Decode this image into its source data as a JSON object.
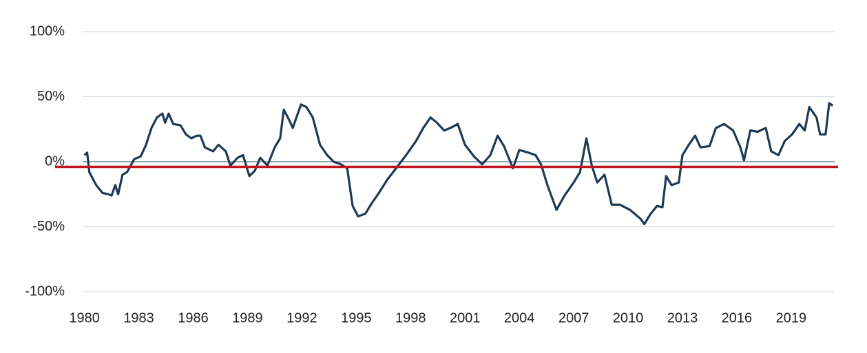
{
  "chart_data": {
    "type": "line",
    "x": [
      1980.0,
      1980.15,
      1980.27,
      1980.65,
      1981.0,
      1981.33,
      1981.5,
      1981.7,
      1981.86,
      1982.1,
      1982.35,
      1982.75,
      1983.1,
      1983.4,
      1983.7,
      1984.0,
      1984.3,
      1984.45,
      1984.65,
      1984.9,
      1985.3,
      1985.6,
      1985.9,
      1986.2,
      1986.4,
      1986.65,
      1987.1,
      1987.4,
      1987.8,
      1988.05,
      1988.45,
      1988.75,
      1989.1,
      1989.4,
      1989.7,
      1990.1,
      1990.5,
      1990.8,
      1991.0,
      1991.3,
      1991.5,
      1991.7,
      1991.95,
      1992.25,
      1992.6,
      1993.0,
      1993.4,
      1993.75,
      1994.15,
      1994.5,
      1994.8,
      1995.1,
      1995.5,
      1995.85,
      1996.25,
      1996.7,
      1997.2,
      1997.75,
      1998.3,
      1998.7,
      1999.1,
      1999.45,
      1999.85,
      2000.2,
      2000.6,
      2001.0,
      2001.5,
      2001.95,
      2002.4,
      2002.8,
      2003.15,
      2003.65,
      2004.0,
      2004.5,
      2004.9,
      2005.2,
      2005.55,
      2006.05,
      2006.5,
      2006.95,
      2007.35,
      2007.7,
      2008.0,
      2008.3,
      2008.7,
      2009.1,
      2009.55,
      2010.1,
      2010.7,
      2010.9,
      2011.25,
      2011.6,
      2011.9,
      2012.1,
      2012.4,
      2012.8,
      2013.0,
      2013.35,
      2013.7,
      2014.0,
      2014.5,
      2014.85,
      2015.3,
      2015.8,
      2016.2,
      2016.4,
      2016.75,
      2017.15,
      2017.6,
      2017.9,
      2018.3,
      2018.65,
      2019.05,
      2019.45,
      2019.75,
      2020.0,
      2020.4,
      2020.6,
      2020.9,
      2021.1,
      2021.3
    ],
    "series": [
      {
        "color": "#1c3a56",
        "values": [
          5,
          7,
          -8,
          -18,
          -24,
          -25,
          -26,
          -18,
          -25,
          -10,
          -8,
          2,
          4,
          13,
          26,
          34,
          37,
          30,
          37,
          29,
          28,
          21,
          18,
          20,
          20,
          11,
          8,
          13,
          8,
          -3,
          3,
          5,
          -11,
          -7,
          3,
          -3,
          11,
          18,
          40,
          32,
          26,
          34,
          44,
          42,
          34,
          13,
          5,
          0,
          -2,
          -5,
          -34,
          -42,
          -40,
          -32,
          -24,
          -14,
          -5,
          5,
          16,
          26,
          34,
          30,
          24,
          26,
          29,
          13,
          4,
          -2,
          5,
          20,
          12,
          -5,
          9,
          7,
          5,
          -2,
          -18,
          -37,
          -26,
          -17,
          -8,
          18,
          -3,
          -16,
          -10,
          -33,
          -33,
          -37,
          -44,
          -48,
          -40,
          -34,
          -35,
          -11,
          -18,
          -16,
          5,
          13,
          20,
          11,
          12,
          26,
          29,
          24,
          11,
          1,
          24,
          23,
          26,
          8,
          5,
          16,
          21,
          29,
          24,
          42,
          34,
          21,
          21,
          45,
          43
        ]
      }
    ],
    "reference_line": {
      "value": -4,
      "color": "#c0161b"
    },
    "xlim": [
      1979.9,
      2021.4
    ],
    "xticks": [
      1980,
      1983,
      1986,
      1989,
      1992,
      1995,
      1998,
      2001,
      2004,
      2007,
      2010,
      2013,
      2016,
      2019
    ],
    "ylim": [
      -100,
      100
    ],
    "yticks": [
      {
        "value": -100,
        "label": "-100%"
      },
      {
        "value": -50,
        "label": "-50%"
      },
      {
        "value": 0,
        "label": "0%"
      },
      {
        "value": 50,
        "label": "50%"
      },
      {
        "value": 100,
        "label": "100%"
      }
    ],
    "grid": true
  }
}
